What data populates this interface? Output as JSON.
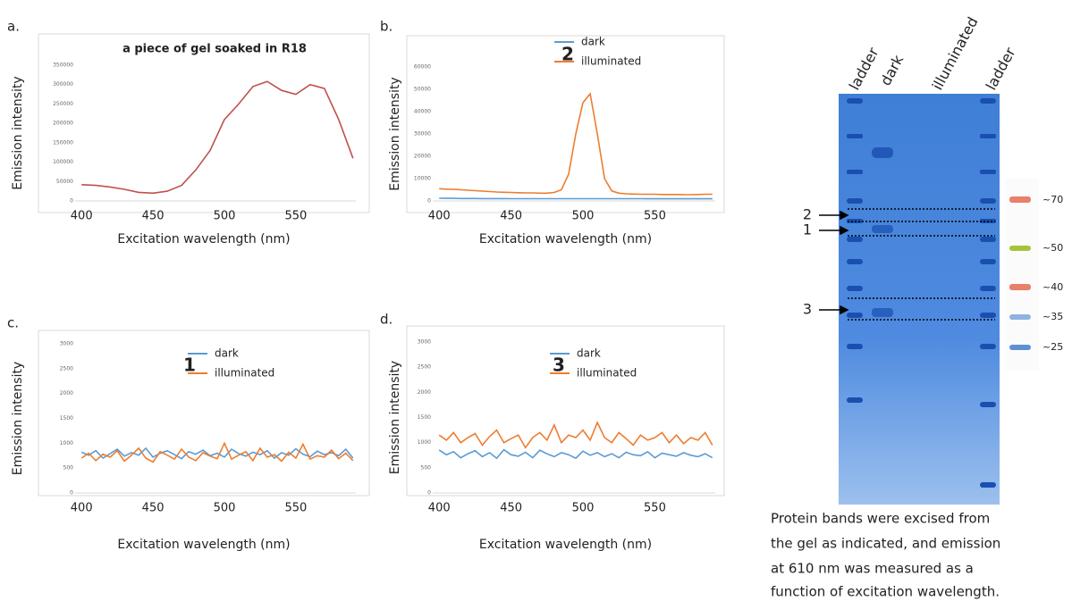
{
  "chart_data": [
    {
      "type": "line",
      "panel": "a.",
      "title": "a piece of gel soaked in R18",
      "xlabel": "Excitation wavelength (nm)",
      "ylabel": "Emission intensity",
      "x": [
        400,
        410,
        420,
        430,
        440,
        450,
        460,
        470,
        480,
        490,
        500,
        510,
        520,
        530,
        540,
        550,
        560,
        570,
        580,
        590
      ],
      "series": [
        {
          "name": null,
          "color": "#c0504d",
          "values": [
            42000,
            40000,
            36000,
            30000,
            22000,
            20000,
            25000,
            40000,
            80000,
            130000,
            210000,
            250000,
            295000,
            308000,
            285000,
            275000,
            300000,
            290000,
            210000,
            110000
          ]
        }
      ],
      "xlim": [
        398,
        592
      ],
      "xticks": [
        400,
        450,
        500,
        550
      ],
      "ylim": [
        0,
        350000
      ],
      "yticks": [
        0,
        50000,
        100000,
        150000,
        200000,
        250000,
        300000,
        350000
      ],
      "grid": false
    },
    {
      "type": "line",
      "panel": "b.",
      "annotation": "2",
      "xlabel": "Excitation wavelength (nm)",
      "ylabel": "Emission intensity",
      "x": [
        400,
        405,
        410,
        415,
        420,
        425,
        430,
        435,
        440,
        445,
        450,
        455,
        460,
        465,
        470,
        475,
        480,
        485,
        490,
        495,
        500,
        505,
        510,
        515,
        520,
        525,
        530,
        535,
        540,
        545,
        550,
        555,
        560,
        565,
        570,
        575,
        580,
        585,
        590
      ],
      "series": [
        {
          "name": "dark",
          "color": "#5b9bd5",
          "values": [
            1200,
            1150,
            1150,
            1100,
            1100,
            1100,
            1050,
            1050,
            1050,
            1050,
            1000,
            1000,
            1000,
            1000,
            1000,
            1000,
            1000,
            1000,
            1000,
            1000,
            1000,
            1000,
            1000,
            1000,
            1000,
            1000,
            1000,
            1000,
            1000,
            950,
            950,
            950,
            950,
            950,
            950,
            950,
            950,
            950,
            950
          ]
        },
        {
          "name": "illuminated",
          "color": "#ed7d31",
          "values": [
            5500,
            5300,
            5200,
            5000,
            4800,
            4600,
            4400,
            4200,
            4000,
            3900,
            3800,
            3700,
            3600,
            3600,
            3500,
            3500,
            3800,
            5000,
            12000,
            30000,
            44000,
            48000,
            30000,
            10000,
            4500,
            3500,
            3200,
            3100,
            3000,
            3000,
            3000,
            2900,
            2900,
            2900,
            2800,
            2800,
            2900,
            3000,
            3000
          ]
        }
      ],
      "xlim": [
        398,
        592
      ],
      "xticks": [
        400,
        450,
        500,
        550
      ],
      "ylim": [
        0,
        60000
      ],
      "yticks": [
        0,
        10000,
        20000,
        30000,
        40000,
        50000,
        60000
      ],
      "grid": false
    },
    {
      "type": "line",
      "panel": "c.",
      "annotation": "1",
      "xlabel": "Excitation wavelength (nm)",
      "ylabel": "Emission intensity",
      "x": [
        400,
        405,
        410,
        415,
        420,
        425,
        430,
        435,
        440,
        445,
        450,
        455,
        460,
        465,
        470,
        475,
        480,
        485,
        490,
        495,
        500,
        505,
        510,
        515,
        520,
        525,
        530,
        535,
        540,
        545,
        550,
        555,
        560,
        565,
        570,
        575,
        580,
        585,
        590
      ],
      "series": [
        {
          "name": "dark",
          "color": "#5b9bd5",
          "values": [
            820,
            760,
            850,
            700,
            790,
            880,
            740,
            810,
            760,
            900,
            720,
            800,
            850,
            770,
            690,
            830,
            780,
            860,
            750,
            800,
            720,
            880,
            790,
            740,
            820,
            770,
            850,
            700,
            810,
            760,
            890,
            780,
            730,
            840,
            770,
            810,
            750,
            880,
            700
          ]
        },
        {
          "name": "illuminated",
          "color": "#ed7d31",
          "values": [
            700,
            800,
            650,
            780,
            720,
            850,
            640,
            760,
            900,
            700,
            620,
            830,
            760,
            680,
            880,
            720,
            650,
            810,
            740,
            690,
            1000,
            680,
            760,
            830,
            650,
            900,
            720,
            770,
            640,
            820,
            700,
            980,
            680,
            750,
            720,
            860,
            690,
            800,
            650
          ]
        }
      ],
      "xlim": [
        398,
        592
      ],
      "xticks": [
        400,
        450,
        500,
        550
      ],
      "ylim": [
        0,
        3000
      ],
      "yticks": [
        0,
        500,
        1000,
        1500,
        2000,
        2500,
        3000
      ],
      "grid": false
    },
    {
      "type": "line",
      "panel": "d.",
      "annotation": "3",
      "xlabel": "Excitation wavelength (nm)",
      "ylabel": "Emission intensity",
      "x": [
        400,
        405,
        410,
        415,
        420,
        425,
        430,
        435,
        440,
        445,
        450,
        455,
        460,
        465,
        470,
        475,
        480,
        485,
        490,
        495,
        500,
        505,
        510,
        515,
        520,
        525,
        530,
        535,
        540,
        545,
        550,
        555,
        560,
        565,
        570,
        575,
        580,
        585,
        590
      ],
      "series": [
        {
          "name": "dark",
          "color": "#5b9bd5",
          "values": [
            850,
            760,
            820,
            700,
            780,
            840,
            720,
            800,
            690,
            860,
            760,
            730,
            810,
            700,
            850,
            780,
            720,
            800,
            760,
            690,
            830,
            750,
            800,
            720,
            780,
            700,
            810,
            760,
            740,
            820,
            700,
            790,
            760,
            730,
            800,
            750,
            720,
            780,
            700
          ]
        },
        {
          "name": "illuminated",
          "color": "#ed7d31",
          "values": [
            1150,
            1050,
            1200,
            1000,
            1100,
            1180,
            950,
            1120,
            1250,
            1000,
            1080,
            1150,
            900,
            1100,
            1200,
            1050,
            1350,
            1000,
            1150,
            1100,
            1250,
            1050,
            1400,
            1100,
            1000,
            1200,
            1080,
            950,
            1150,
            1050,
            1100,
            1200,
            1000,
            1150,
            980,
            1100,
            1050,
            1200,
            950
          ]
        }
      ],
      "xlim": [
        398,
        592
      ],
      "xticks": [
        400,
        450,
        500,
        550
      ],
      "ylim": [
        0,
        3000
      ],
      "yticks": [
        0,
        500,
        1000,
        1500,
        2000,
        2500,
        3000
      ],
      "grid": false
    }
  ],
  "gel": {
    "lane_labels": [
      "ladder",
      "dark",
      "illuminated",
      "ladder"
    ],
    "band_labels": [
      "2",
      "1",
      "3"
    ],
    "marker_labels": [
      "~70",
      "~50",
      "~40",
      "~35",
      "~25"
    ],
    "caption": [
      "Protein bands were excised from",
      "the gel as indicated, and emission",
      "at 610 nm was measured as a",
      "function of excitation wavelength."
    ]
  }
}
